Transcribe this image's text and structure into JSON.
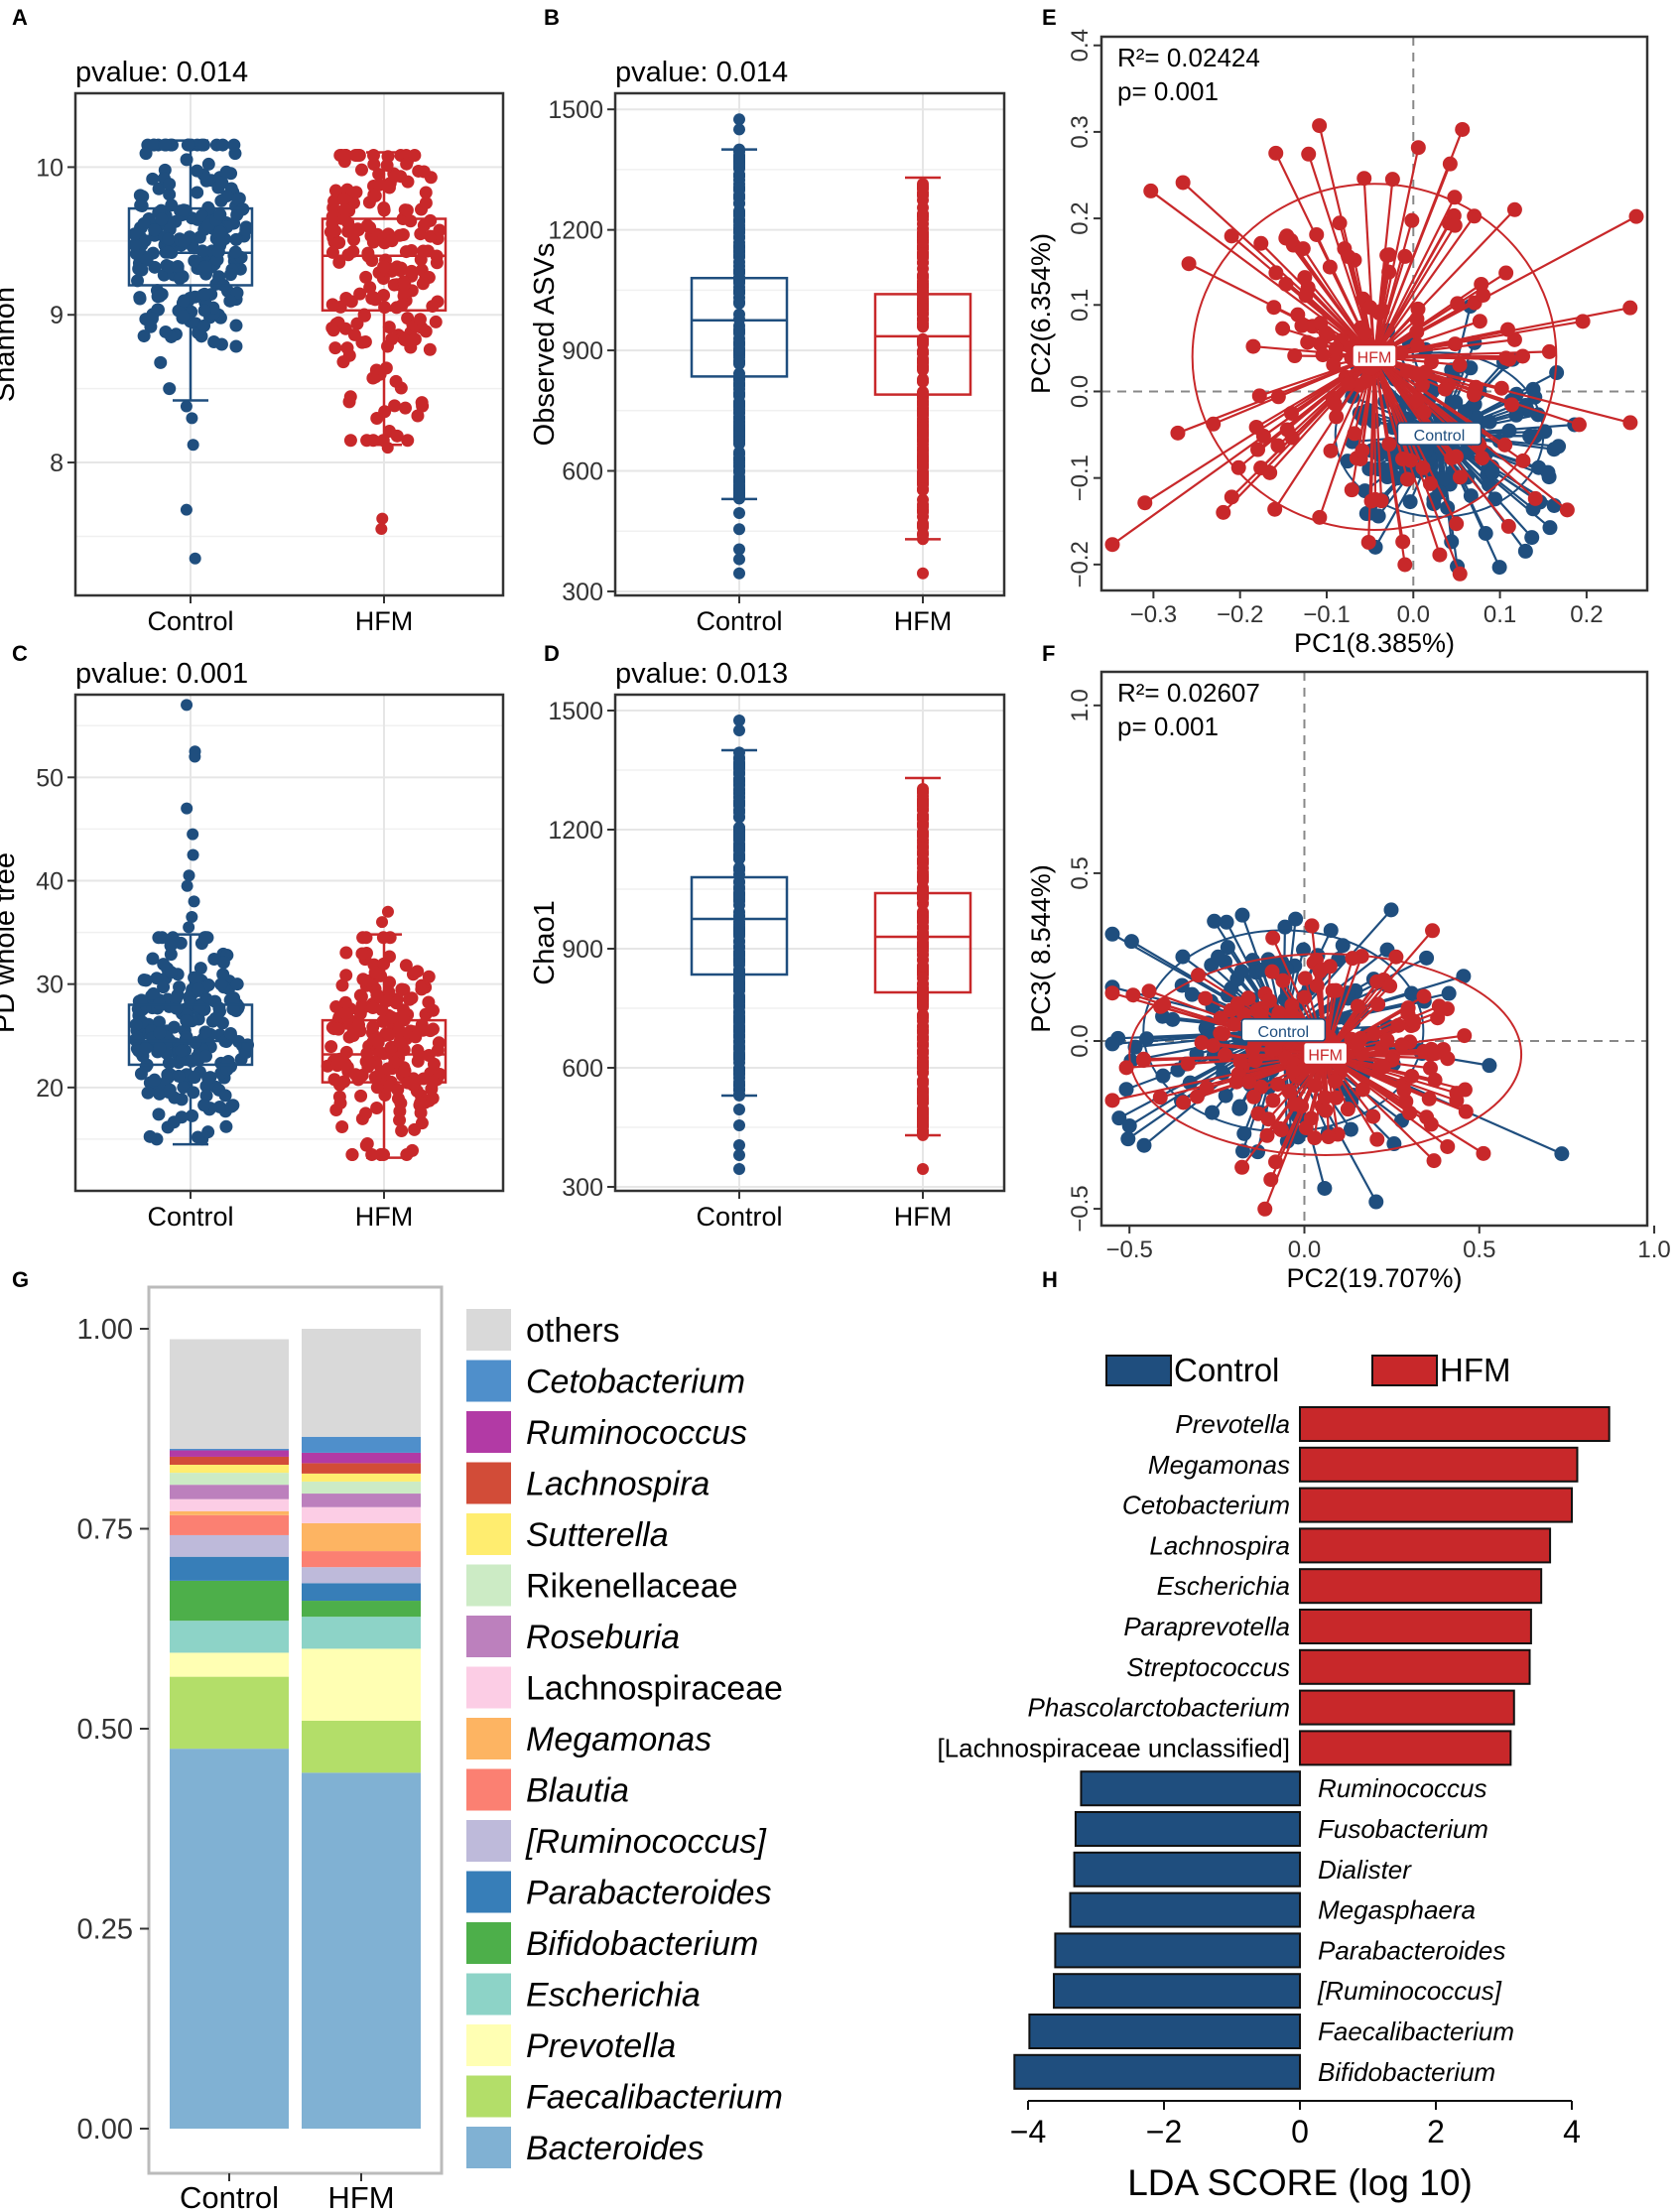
{
  "colors": {
    "control": "#1f4e7e",
    "hfm": "#c8282a",
    "grid": "#e6e6e6",
    "ellipse_control": "#1f4e7e",
    "ellipse_hfm": "#c8282a"
  },
  "panels": {
    "A": "A",
    "B": "B",
    "C": "C",
    "D": "D",
    "E": "E",
    "F": "F",
    "G": "G",
    "H": "H"
  },
  "chart_data": [
    {
      "id": "A",
      "type": "scatter",
      "subtype": "box_jitter",
      "title": "pvalue: 0.014",
      "ylabel": "Shannon",
      "xlabel": "",
      "categories": [
        "Control",
        "HFM"
      ],
      "ylim": [
        7.1,
        10.5
      ],
      "yticks": [
        8,
        9,
        10
      ],
      "ytick_labels": [
        "8",
        "9",
        "10"
      ],
      "series": [
        {
          "name": "Control",
          "box": {
            "q1": 9.2,
            "median": 9.42,
            "q3": 9.72,
            "low": 8.42,
            "high": 10.18
          },
          "range": [
            8.5,
            10.15
          ],
          "n": 220,
          "outliers": [
            8.3,
            8.12,
            7.68,
            7.35,
            8.38
          ],
          "spread": 0.32
        },
        {
          "name": "HFM",
          "box": {
            "q1": 9.03,
            "median": 9.4,
            "q3": 9.65,
            "low": 8.12,
            "high": 10.1
          },
          "range": [
            8.15,
            10.08
          ],
          "n": 200,
          "outliers": [
            7.55,
            7.62,
            8.1
          ],
          "spread": 0.32
        }
      ]
    },
    {
      "id": "B",
      "type": "scatter",
      "subtype": "box_strip",
      "title": "pvalue: 0.014",
      "ylabel": "Observed ASVs",
      "xlabel": "",
      "categories": [
        "Control",
        "HFM"
      ],
      "ylim": [
        290,
        1540
      ],
      "yticks": [
        300,
        600,
        900,
        1200,
        1500
      ],
      "ytick_labels": [
        "300",
        "600",
        "900",
        "1200",
        "1500"
      ],
      "series": [
        {
          "name": "Control",
          "box": {
            "q1": 835,
            "median": 975,
            "q3": 1080,
            "low": 530,
            "high": 1400
          },
          "range": [
            530,
            1400
          ],
          "n": 180,
          "outliers": [
            1475,
            1450,
            495,
            455,
            405,
            380,
            345
          ],
          "spread": 0.0
        },
        {
          "name": "HFM",
          "box": {
            "q1": 790,
            "median": 935,
            "q3": 1040,
            "low": 430,
            "high": 1330
          },
          "range": [
            430,
            1325
          ],
          "n": 180,
          "outliers": [
            345
          ],
          "spread": 0.0
        }
      ]
    },
    {
      "id": "C",
      "type": "scatter",
      "subtype": "box_jitter",
      "title": "pvalue: 0.001",
      "ylabel": "PD whole tree",
      "xlabel": "",
      "categories": [
        "Control",
        "HFM"
      ],
      "ylim": [
        10,
        58
      ],
      "yticks": [
        20,
        30,
        40,
        50
      ],
      "ytick_labels": [
        "20",
        "30",
        "40",
        "50"
      ],
      "series": [
        {
          "name": "Control",
          "box": {
            "q1": 22.2,
            "median": 24.5,
            "q3": 28.0,
            "low": 14.5,
            "high": 34.8
          },
          "range": [
            15,
            34.5
          ],
          "n": 220,
          "outliers": [
            57,
            52.5,
            52,
            47,
            44.5,
            42.5,
            40.5,
            39.5,
            38,
            36.5,
            35.5
          ],
          "spread": 0.15
        },
        {
          "name": "HFM",
          "box": {
            "q1": 20.5,
            "median": 23.2,
            "q3": 26.5,
            "low": 13.2,
            "high": 34.8
          },
          "range": [
            13.5,
            34.5
          ],
          "n": 200,
          "outliers": [
            37,
            36
          ],
          "spread": 0.15
        }
      ]
    },
    {
      "id": "D",
      "type": "scatter",
      "subtype": "box_strip",
      "title": "pvalue: 0.013",
      "ylabel": "Chao1",
      "xlabel": "",
      "categories": [
        "Control",
        "HFM"
      ],
      "ylim": [
        290,
        1540
      ],
      "yticks": [
        300,
        600,
        900,
        1200,
        1500
      ],
      "ytick_labels": [
        "300",
        "600",
        "900",
        "1200",
        "1500"
      ],
      "series": [
        {
          "name": "Control",
          "box": {
            "q1": 835,
            "median": 975,
            "q3": 1080,
            "low": 530,
            "high": 1400
          },
          "range": [
            530,
            1400
          ],
          "n": 180,
          "outliers": [
            1475,
            1450,
            495,
            455,
            405,
            380,
            345
          ],
          "spread": 0.0
        },
        {
          "name": "HFM",
          "box": {
            "q1": 790,
            "median": 930,
            "q3": 1040,
            "low": 430,
            "high": 1330
          },
          "range": [
            430,
            1325
          ],
          "n": 180,
          "outliers": [
            345
          ],
          "spread": 0.0
        }
      ]
    },
    {
      "id": "E",
      "type": "scatter",
      "subtype": "pcoa_star",
      "xlabel": "PC1(8.385%)",
      "ylabel": "PC2(6.354%)",
      "annotations": [
        "R²= 0.02424",
        "p= 0.001"
      ],
      "xlim": [
        -0.36,
        0.27
      ],
      "ylim": [
        -0.23,
        0.41
      ],
      "xticks": [
        -0.3,
        -0.2,
        -0.1,
        0.0,
        0.1,
        0.2
      ],
      "xtick_labels": [
        "−0.3",
        "−0.2",
        "−0.1",
        "0.0",
        "0.1",
        "0.2"
      ],
      "yticks": [
        -0.2,
        -0.1,
        0.0,
        0.1,
        0.2,
        0.3,
        0.4
      ],
      "ytick_labels": [
        "−0.2",
        "−0.1",
        "0.0",
        "0.1",
        "0.2",
        "0.3",
        "0.4"
      ],
      "series": [
        {
          "name": "Control",
          "label": "Control",
          "centroid": [
            0.03,
            -0.05
          ],
          "spread": [
            0.07,
            0.055
          ],
          "n": 160,
          "ellipse": {
            "rx": 0.12,
            "ry": 0.095,
            "angle": 0
          }
        },
        {
          "name": "HFM",
          "label": "HFM",
          "centroid": [
            -0.045,
            0.04
          ],
          "spread": [
            0.11,
            0.12
          ],
          "n": 170,
          "ellipse": {
            "rx": 0.21,
            "ry": 0.2,
            "angle": 0
          }
        }
      ]
    },
    {
      "id": "F",
      "type": "scatter",
      "subtype": "pcoa_star",
      "xlabel": "PC2(19.707%)",
      "ylabel": "PC3( 8.544%)",
      "annotations": [
        "R²= 0.02607",
        "p= 0.001"
      ],
      "xlim": [
        -0.58,
        0.98
      ],
      "ylim": [
        -0.55,
        1.1
      ],
      "xticks": [
        -0.5,
        0.0,
        0.5,
        1.0
      ],
      "xtick_labels": [
        "−0.5",
        "0.0",
        "0.5",
        "1.0"
      ],
      "yticks": [
        -0.5,
        0.0,
        0.5,
        1.0
      ],
      "ytick_labels": [
        "−0.5",
        "0.0",
        "0.5",
        "1.0"
      ],
      "series": [
        {
          "name": "Control",
          "label": "Control",
          "centroid": [
            -0.06,
            0.03
          ],
          "spread": [
            0.22,
            0.17
          ],
          "n": 170,
          "ellipse": {
            "rx": 0.4,
            "ry": 0.3,
            "angle": 0
          }
        },
        {
          "name": "HFM",
          "label": "HFM",
          "centroid": [
            0.06,
            -0.04
          ],
          "spread": [
            0.26,
            0.16
          ],
          "n": 170,
          "ellipse": {
            "rx": 0.56,
            "ry": 0.3,
            "angle": 0
          }
        }
      ]
    },
    {
      "id": "G",
      "type": "bar",
      "subtype": "stacked",
      "categories": [
        "Control",
        "HFM"
      ],
      "ylim": [
        0,
        1.05
      ],
      "yticks": [
        0.0,
        0.25,
        0.5,
        0.75,
        1.0
      ],
      "ytick_labels": [
        "0.00",
        "0.25",
        "0.50",
        "0.75",
        "1.00"
      ],
      "series": [
        {
          "name": "Bacteroides",
          "italic": true,
          "color": "#80b1d3",
          "values": [
            0.475,
            0.445
          ]
        },
        {
          "name": "Faecalibacterium",
          "italic": true,
          "color": "#b3de69",
          "values": [
            0.09,
            0.065
          ]
        },
        {
          "name": "Prevotella",
          "italic": true,
          "color": "#ffffb3",
          "values": [
            0.03,
            0.09
          ]
        },
        {
          "name": "Escherichia",
          "italic": true,
          "color": "#8dd3c7",
          "values": [
            0.04,
            0.04
          ]
        },
        {
          "name": "Bifidobacterium",
          "italic": true,
          "color": "#4daf4a",
          "values": [
            0.05,
            0.02
          ]
        },
        {
          "name": "Parabacteroides",
          "italic": true,
          "color": "#377eb8",
          "values": [
            0.03,
            0.022
          ]
        },
        {
          "name": "[Ruminococcus]",
          "italic": true,
          "color": "#bebada",
          "values": [
            0.027,
            0.02
          ]
        },
        {
          "name": "Blautia",
          "italic": true,
          "color": "#fb8072",
          "values": [
            0.025,
            0.02
          ]
        },
        {
          "name": "Megamonas",
          "italic": true,
          "color": "#fdb462",
          "values": [
            0.005,
            0.035
          ]
        },
        {
          "name": "Lachnospiraceae",
          "italic": false,
          "color": "#fccde5",
          "values": [
            0.015,
            0.02
          ]
        },
        {
          "name": "Roseburia",
          "italic": true,
          "color": "#bc80bd",
          "values": [
            0.018,
            0.017
          ]
        },
        {
          "name": "Rikenellaceae",
          "italic": false,
          "color": "#ccebc5",
          "values": [
            0.015,
            0.015
          ]
        },
        {
          "name": "Sutterella",
          "italic": true,
          "color": "#ffed6f",
          "values": [
            0.01,
            0.01
          ]
        },
        {
          "name": "Lachnospira",
          "italic": true,
          "color": "#d24c38",
          "values": [
            0.01,
            0.013
          ]
        },
        {
          "name": "Ruminococcus",
          "italic": true,
          "color": "#b23aa5",
          "values": [
            0.008,
            0.013
          ]
        },
        {
          "name": "Cetobacterium",
          "italic": true,
          "color": "#4f8fcb",
          "values": [
            0.002,
            0.02
          ]
        },
        {
          "name": "others",
          "italic": false,
          "color": "#d9d9d9",
          "values": [
            0.137,
            0.135
          ]
        }
      ]
    },
    {
      "id": "H",
      "type": "bar",
      "subtype": "horizontal_diverging",
      "xlabel": "LDA SCORE (log 10)",
      "legend": [
        "Control",
        "HFM"
      ],
      "xlim": [
        -4.5,
        4.6
      ],
      "xticks": [
        -4,
        -2,
        0,
        2,
        4
      ],
      "xtick_labels": [
        "−4",
        "−2",
        "0",
        "2",
        "4"
      ],
      "bars": [
        {
          "name": "Prevotella",
          "group": "HFM",
          "value": 4.55
        },
        {
          "name": "Megamonas",
          "group": "HFM",
          "value": 4.08
        },
        {
          "name": "Cetobacterium",
          "group": "HFM",
          "value": 4.0
        },
        {
          "name": "Lachnospira",
          "group": "HFM",
          "value": 3.68
        },
        {
          "name": "Escherichia",
          "group": "HFM",
          "value": 3.55
        },
        {
          "name": "Paraprevotella",
          "group": "HFM",
          "value": 3.4
        },
        {
          "name": "Streptococcus",
          "group": "HFM",
          "value": 3.38
        },
        {
          "name": "Phascolarctobacterium",
          "group": "HFM",
          "value": 3.15
        },
        {
          "name": "[Lachnospiraceae unclassified]",
          "group": "HFM",
          "value": 3.1,
          "italic": false
        },
        {
          "name": "Ruminococcus",
          "group": "Control",
          "value": -3.22
        },
        {
          "name": "Fusobacterium",
          "group": "Control",
          "value": -3.3
        },
        {
          "name": "Dialister",
          "group": "Control",
          "value": -3.32
        },
        {
          "name": "Megasphaera",
          "group": "Control",
          "value": -3.38
        },
        {
          "name": "Parabacteroides",
          "group": "Control",
          "value": -3.6
        },
        {
          "name": "[Ruminococcus]",
          "group": "Control",
          "value": -3.62
        },
        {
          "name": "Faecalibacterium",
          "group": "Control",
          "value": -3.98
        },
        {
          "name": "Bifidobacterium",
          "group": "Control",
          "value": -4.2
        }
      ]
    }
  ]
}
